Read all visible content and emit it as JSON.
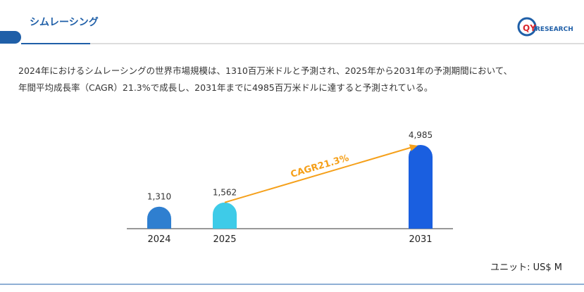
{
  "chart_data": {
    "type": "bar",
    "title": "シムレーシング",
    "description": [
      "2024年におけるシムレーシングの世界市場規模は、1310百万米ドルと予測され、2025年から2031年の予測期間において、",
      "年間平均成長率（CAGR）21.3%で成長し、2031年までに4985百万米ドルに達すると予測されている。"
    ],
    "categories": [
      "2024",
      "2025",
      "2031"
    ],
    "values": [
      1310,
      1562,
      4985
    ],
    "value_labels": [
      "1,310",
      "1,562",
      "4,985"
    ],
    "colors": [
      "#2f7fd0",
      "#3ecbe8",
      "#1a5fe0"
    ],
    "annotation": "CAGR21.3%",
    "annotation_color": "#f5a01a",
    "unit": "ユニット: US$ M",
    "logo": [
      "QY",
      "RESEARCH"
    ]
  }
}
